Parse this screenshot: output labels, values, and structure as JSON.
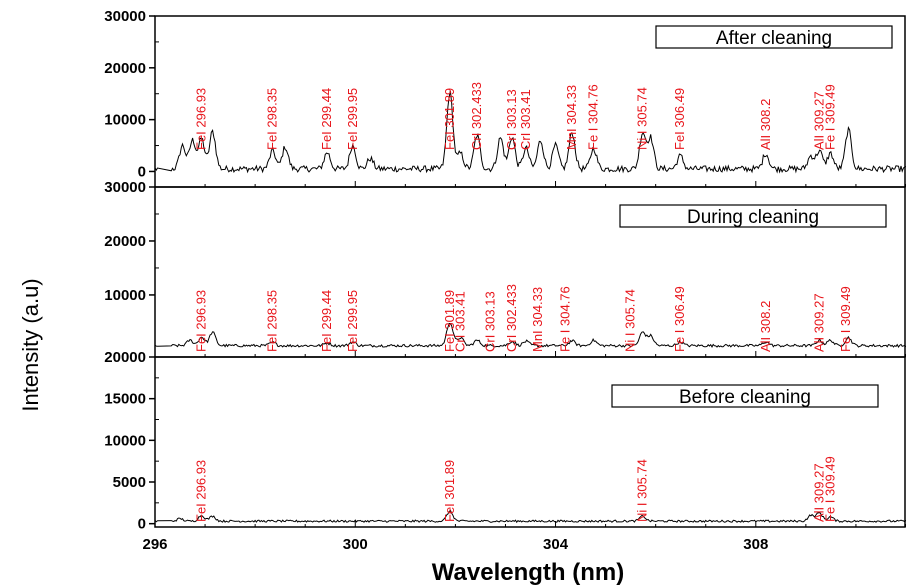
{
  "chart_data": {
    "type": "line",
    "xlabel": "Wavelength (nm)",
    "ylabel": "Intensity (a.u)",
    "xlim": [
      296,
      311
    ],
    "x_ticks": [
      "296",
      "300",
      "304",
      "308"
    ],
    "x_tick_values": [
      296,
      300,
      304,
      308
    ],
    "panels": [
      {
        "name": "After cleaning",
        "ylim": [
          -3000,
          30000
        ],
        "y_ticks": [
          "0",
          "10000",
          "20000",
          "30000"
        ],
        "y_tick_values": [
          0,
          10000,
          20000,
          30000
        ],
        "series": {
          "baseline": 500,
          "noise": 1200,
          "peaks": [
            [
              296.55,
              4500
            ],
            [
              296.75,
              5500
            ],
            [
              296.93,
              5800
            ],
            [
              297.15,
              7200
            ],
            [
              298.35,
              3500
            ],
            [
              298.6,
              4200
            ],
            [
              299.44,
              3200
            ],
            [
              299.95,
              4600
            ],
            [
              300.3,
              2000
            ],
            [
              301.89,
              14800
            ],
            [
              302.1,
              3000
            ],
            [
              302.433,
              6500
            ],
            [
              302.9,
              6000
            ],
            [
              303.13,
              6200
            ],
            [
              303.41,
              4000
            ],
            [
              303.7,
              5500
            ],
            [
              304.0,
              4500
            ],
            [
              304.33,
              7000
            ],
            [
              304.76,
              4000
            ],
            [
              305.74,
              7000
            ],
            [
              305.9,
              6000
            ],
            [
              306.49,
              2500
            ],
            [
              308.2,
              3000
            ],
            [
              309.1,
              2500
            ],
            [
              309.27,
              3500
            ],
            [
              309.49,
              3000
            ],
            [
              309.85,
              7500
            ]
          ]
        },
        "annotations": [
          {
            "label": "FeI 296.93",
            "x": 296.93
          },
          {
            "label": "FeI 298.35",
            "x": 298.35
          },
          {
            "label": "FeI 299.44",
            "x": 299.44
          },
          {
            "label": "FeI 299.95",
            "x": 299.95
          },
          {
            "label": "FeI 301.89",
            "x": 301.89
          },
          {
            "label": "CrI 302.433",
            "x": 302.433
          },
          {
            "label": "CrI 303.13",
            "x": 303.13
          },
          {
            "label": "CrI 303.41",
            "x": 303.41
          },
          {
            "label": "MnI 304.33",
            "x": 304.33
          },
          {
            "label": "Fe I 304.76",
            "x": 304.76
          },
          {
            "label": "Ni I 305.74",
            "x": 305.74
          },
          {
            "label": "FeI 306.49",
            "x": 306.49
          },
          {
            "label": "AlI 308.2",
            "x": 308.2
          },
          {
            "label": "AlI 309.27",
            "x": 309.27
          },
          {
            "label": "Fe I 309.49",
            "x": 309.49
          }
        ]
      },
      {
        "name": "During cleaning",
        "ylim": [
          -1500,
          30000
        ],
        "y_ticks": [
          "10000",
          "20000",
          "30000"
        ],
        "y_tick_values": [
          10000,
          20000,
          30000
        ],
        "series": {
          "baseline": 600,
          "noise": 500,
          "peaks": [
            [
              296.7,
              1000
            ],
            [
              296.93,
              1600
            ],
            [
              297.15,
              2500
            ],
            [
              298.35,
              600
            ],
            [
              299.44,
              500
            ],
            [
              299.95,
              700
            ],
            [
              301.89,
              4400
            ],
            [
              302.1,
              1500
            ],
            [
              302.433,
              1000
            ],
            [
              303.13,
              800
            ],
            [
              303.41,
              800
            ],
            [
              304.33,
              900
            ],
            [
              304.76,
              1000
            ],
            [
              305.74,
              2500
            ],
            [
              305.9,
              1800
            ],
            [
              306.49,
              700
            ],
            [
              308.2,
              700
            ],
            [
              309.27,
              1000
            ],
            [
              309.49,
              1000
            ],
            [
              309.85,
              1500
            ]
          ]
        },
        "annotations": [
          {
            "label": "FeI 296.93",
            "x": 296.93
          },
          {
            "label": "FeI 298.35",
            "x": 298.35
          },
          {
            "label": "FeI 299.44",
            "x": 299.44
          },
          {
            "label": "FeI 299.95",
            "x": 299.95
          },
          {
            "label": "FeI 301.89",
            "x": 301.89
          },
          {
            "label": "CrI 303.41",
            "x": 302.1
          },
          {
            "label": "CrI 303.13",
            "x": 302.7
          },
          {
            "label": "CrI 302.433",
            "x": 303.13
          },
          {
            "label": "MnI 304.33",
            "x": 303.65
          },
          {
            "label": "Fe I 304.76",
            "x": 304.2
          },
          {
            "label": "Ni I 305.74",
            "x": 305.5
          },
          {
            "label": "Fe I 306.49",
            "x": 306.49
          },
          {
            "label": "AlI 308.2",
            "x": 308.2
          },
          {
            "label": "AlI 309.27",
            "x": 309.27
          },
          {
            "label": "Fe I 309.49",
            "x": 309.8
          }
        ]
      },
      {
        "name": "Before cleaning",
        "ylim": [
          -400,
          20000
        ],
        "y_ticks": [
          "0",
          "5000",
          "10000",
          "15000",
          "20000"
        ],
        "y_tick_values": [
          0,
          5000,
          10000,
          15000,
          20000
        ],
        "series": {
          "baseline": 300,
          "noise": 250,
          "peaks": [
            [
              296.5,
              300
            ],
            [
              296.93,
              700
            ],
            [
              297.15,
              600
            ],
            [
              301.89,
              1200
            ],
            [
              305.74,
              600
            ],
            [
              309.1,
              700
            ],
            [
              309.27,
              1000
            ],
            [
              309.49,
              500
            ]
          ]
        },
        "annotations": [
          {
            "label": "FeI 296.93",
            "x": 296.93
          },
          {
            "label": "FeI 301.89",
            "x": 301.89
          },
          {
            "label": "Ni I 305.74",
            "x": 305.74
          },
          {
            "label": "AlI 309.27",
            "x": 309.27
          },
          {
            "label": "Fe I 309.49",
            "x": 309.49
          }
        ]
      }
    ]
  }
}
